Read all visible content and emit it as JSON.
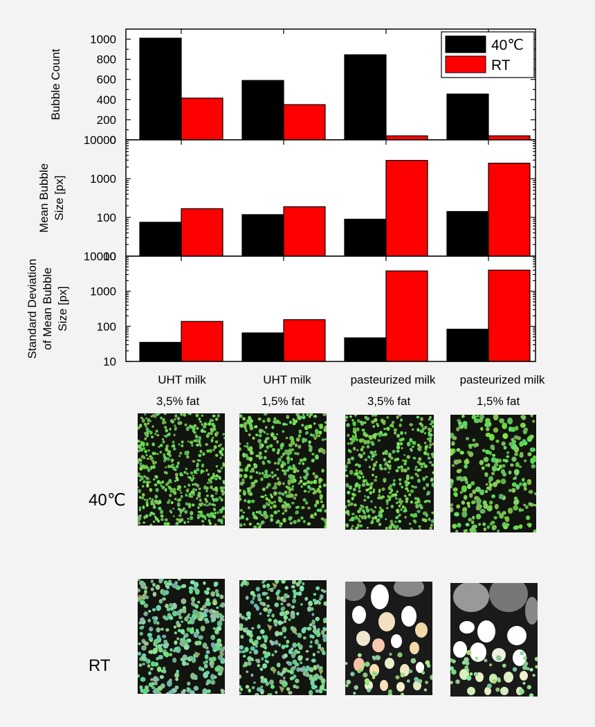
{
  "chart_data": [
    {
      "type": "bar",
      "panel": "top",
      "ylabel": "Bubble Count",
      "yscale": "linear",
      "ylim": [
        0,
        1100
      ],
      "yticks": [
        0,
        200,
        400,
        600,
        800,
        1000
      ],
      "categories": [
        "UHT milk 3,5% fat",
        "UHT milk 1,5% fat",
        "pasteurized milk 3,5% fat",
        "pasteurized milk 1,5% fat"
      ],
      "series": [
        {
          "name": "40℃",
          "color": "#000000",
          "values": [
            1010,
            590,
            845,
            455
          ]
        },
        {
          "name": "RT",
          "color": "#ff0000",
          "values": [
            415,
            350,
            40,
            40
          ]
        }
      ],
      "legend": {
        "position": "top-right",
        "entries": [
          "40℃",
          "RT"
        ]
      }
    },
    {
      "type": "bar",
      "panel": "middle",
      "ylabel_lines": [
        "Mean Bubble",
        "Size [px]"
      ],
      "yscale": "log",
      "ylim": [
        10,
        10000
      ],
      "ytick_labels": [
        "10",
        "100",
        "1000",
        "10000"
      ],
      "series": [
        {
          "name": "40℃",
          "color": "#000000",
          "values": [
            75,
            118,
            90,
            142
          ]
        },
        {
          "name": "RT",
          "color": "#ff0000",
          "values": [
            168,
            188,
            2950,
            2500
          ]
        }
      ]
    },
    {
      "type": "bar",
      "panel": "bottom",
      "ylabel_lines": [
        "Standard Deviation",
        "of Mean Bubble",
        "Size [px]"
      ],
      "yscale": "log",
      "ylim": [
        10,
        10000
      ],
      "ytick_labels": [
        "10",
        "100",
        "1000",
        "10000"
      ],
      "series": [
        {
          "name": "40℃",
          "color": "#000000",
          "values": [
            35,
            65,
            47,
            83
          ]
        },
        {
          "name": "RT",
          "color": "#ff0000",
          "values": [
            138,
            155,
            3800,
            4000
          ]
        }
      ]
    }
  ],
  "category_labels": [
    {
      "line1": "UHT milk",
      "line2": "3,5% fat"
    },
    {
      "line1": "UHT milk",
      "line2": "1,5% fat"
    },
    {
      "line1": "pasteurized milk",
      "line2": "3,5% fat"
    },
    {
      "line1": "pasteurized milk",
      "line2": "1,5% fat"
    }
  ],
  "photo_rows": [
    {
      "label": "40℃"
    },
    {
      "label": "RT"
    }
  ]
}
